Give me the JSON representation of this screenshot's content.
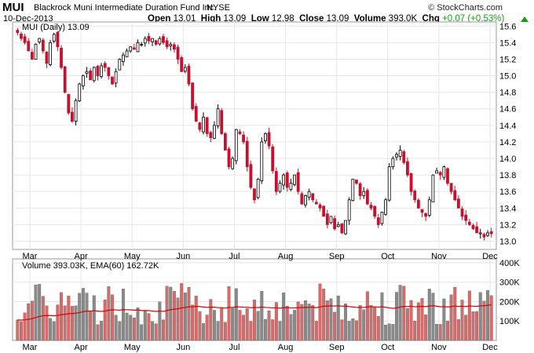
{
  "header": {
    "symbol": "MUI",
    "name": "Blackrock Muni Intermediate Duration Fund Inc.",
    "exchange": "NYSE",
    "date": "10-Dec-2013",
    "logo": "© StockCharts.com",
    "ohlc": {
      "open_label": "Open",
      "open": "13.01",
      "high_label": "High",
      "high": "13.09",
      "low_label": "Low",
      "low": "12.98",
      "close_label": "Close",
      "close": "13.09",
      "volume_label": "Volume",
      "volume": "393.0K",
      "chg_label": "Chg",
      "chg": "+0.07 (+0.53%)"
    }
  },
  "price_panel": {
    "legend": "MUI (Daily) 13.09"
  },
  "volume_panel": {
    "legend": "Volume 393.03K, EMA(60) 162.72K"
  },
  "colors": {
    "up": "#000000",
    "down": "#c8102e",
    "vol_up": "#8a8a8a",
    "vol_down": "#d96a6a",
    "ema": "#d40000",
    "grid": "#e6e6e6"
  },
  "chart_data": [
    {
      "type": "candlestick",
      "ylim": [
        12.9,
        15.65
      ],
      "yticks": [
        13.0,
        13.2,
        13.4,
        13.6,
        13.8,
        14.0,
        14.2,
        14.4,
        14.6,
        14.8,
        15.0,
        15.2,
        15.4,
        15.6
      ],
      "month_labels": [
        "Mar",
        "Apr",
        "May",
        "Jun",
        "Jul",
        "Aug",
        "Sep",
        "Oct",
        "Nov",
        "Dec"
      ],
      "grid": true,
      "close_series": [
        15.52,
        15.45,
        15.4,
        15.3,
        15.2,
        15.38,
        15.45,
        15.3,
        15.15,
        15.4,
        15.5,
        15.35,
        15.1,
        14.8,
        14.55,
        14.45,
        14.7,
        14.9,
        15.0,
        15.05,
        14.95,
        15.1,
        15.0,
        15.12,
        15.1,
        15.0,
        14.9,
        15.05,
        15.2,
        15.25,
        15.3,
        15.35,
        15.32,
        15.4,
        15.38,
        15.45,
        15.42,
        15.45,
        15.38,
        15.45,
        15.4,
        15.35,
        15.38,
        15.32,
        15.2,
        15.05,
        15.1,
        14.9,
        14.6,
        14.45,
        14.35,
        14.5,
        14.3,
        14.25,
        14.4,
        14.6,
        14.3,
        14.1,
        13.9,
        14.0,
        14.35,
        14.3,
        14.2,
        13.9,
        13.65,
        13.5,
        13.75,
        14.2,
        14.3,
        14.15,
        13.85,
        13.6,
        13.7,
        13.8,
        13.65,
        13.7,
        13.8,
        13.6,
        13.45,
        13.55,
        13.6,
        13.5,
        13.45,
        13.4,
        13.3,
        13.2,
        13.3,
        13.15,
        13.2,
        13.1,
        13.25,
        13.5,
        13.75,
        13.7,
        13.55,
        13.6,
        13.45,
        13.4,
        13.3,
        13.2,
        13.35,
        13.5,
        13.9,
        14.0,
        14.05,
        14.1,
        13.95,
        13.8,
        13.6,
        13.5,
        13.4,
        13.35,
        13.3,
        13.5,
        13.8,
        13.85,
        13.8,
        13.9,
        13.7,
        13.6,
        13.5,
        13.4,
        13.3,
        13.25,
        13.2,
        13.15,
        13.1,
        13.1,
        13.05,
        13.1,
        13.09
      ]
    },
    {
      "type": "bar",
      "series_name": "Volume",
      "overlay": "EMA(60)",
      "ylim": [
        0,
        420000
      ],
      "yticks": [
        100000,
        200000,
        300000,
        400000
      ],
      "ytick_labels": [
        "100K",
        "200K",
        "300K",
        "400K"
      ]
    }
  ]
}
